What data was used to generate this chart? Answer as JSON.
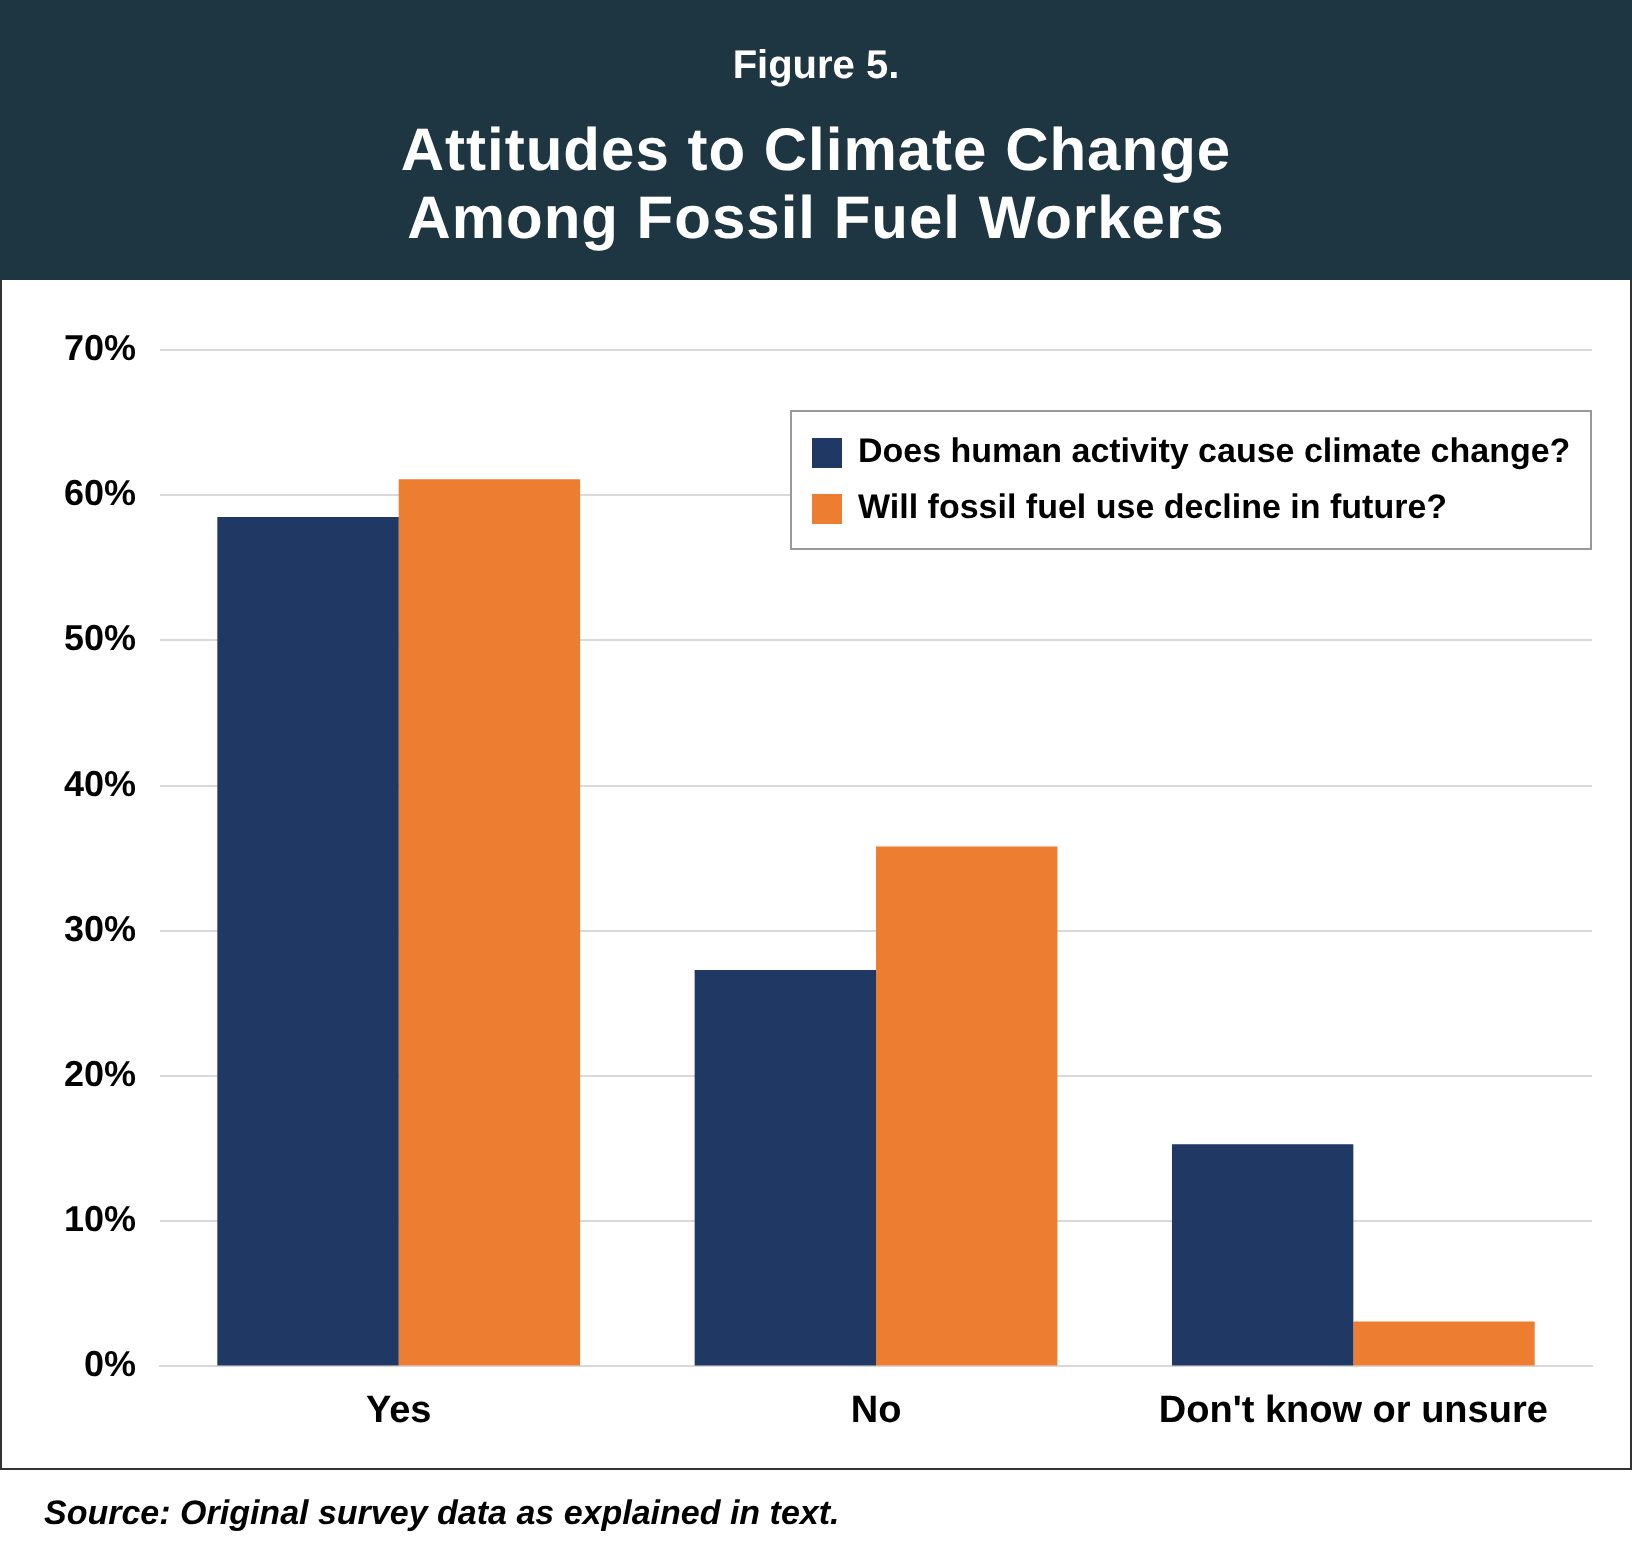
{
  "chart_data": {
    "type": "bar",
    "subtitle": "Figure 5.",
    "title": "Attitudes to Climate Change Among Fossil Fuel Workers",
    "categories": [
      "Yes",
      "No",
      "Don't know or unsure"
    ],
    "series": [
      {
        "name": "Does human activity cause climate change?",
        "color": "#203864",
        "values": [
          58.5,
          27.3,
          15.3
        ]
      },
      {
        "name": "Will fossil fuel use decline in future?",
        "color": "#ed7d31",
        "values": [
          61.1,
          35.8,
          3.1
        ]
      }
    ],
    "ylim": [
      0,
      70
    ],
    "yticks": [
      {
        "value": 0,
        "label": "0%"
      },
      {
        "value": 10,
        "label": "10%"
      },
      {
        "value": 20,
        "label": "20%"
      },
      {
        "value": 30,
        "label": "30%"
      },
      {
        "value": 40,
        "label": "40%"
      },
      {
        "value": 50,
        "label": "50%"
      },
      {
        "value": 60,
        "label": "60%"
      },
      {
        "value": 70,
        "label": "70%"
      }
    ],
    "grid": "y",
    "legend": "top right",
    "annotations": [
      "Source: Original survey data as explained in text."
    ]
  }
}
